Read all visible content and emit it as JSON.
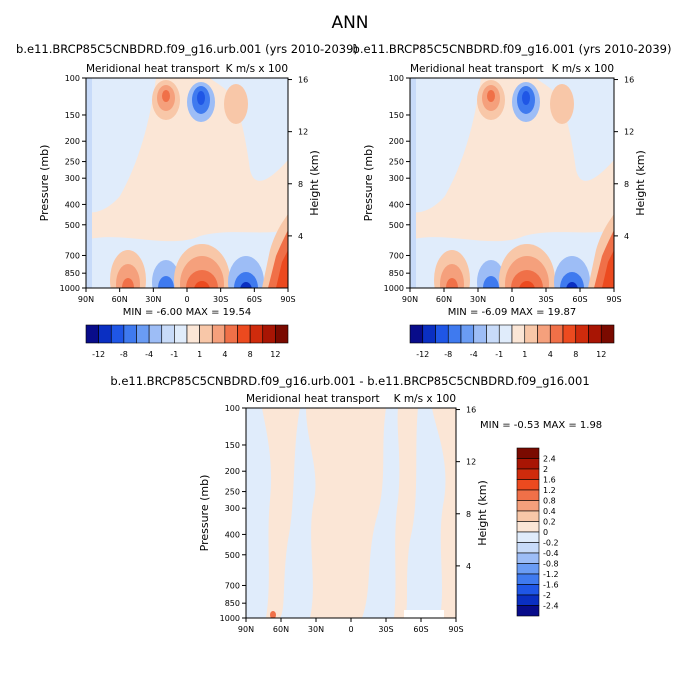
{
  "figure_title": "ANN",
  "chart_data": [
    {
      "type": "heatmap",
      "title": "b.e11.BRCP85C5CNBDRD.f09_g16.urb.001 (yrs 2010-2039)",
      "subtitle_left": "Meridional heat transport",
      "units": "K m/s x 100",
      "ylabel": "Pressure (mb)",
      "ylabel_right": "Height (km)",
      "x_ticks": [
        "90N",
        "60N",
        "30N",
        "0",
        "30S",
        "60S",
        "90S"
      ],
      "y_ticks": [
        "100",
        "150",
        "200",
        "250",
        "300",
        "400",
        "500",
        "700",
        "850",
        "1000"
      ],
      "height_ticks": [
        "16",
        "12",
        "8",
        "4"
      ],
      "stats": "MIN = -6.00  MAX = 19.54",
      "min": -6.0,
      "max": 19.54,
      "contour_levels": [
        -12,
        -10,
        -8,
        -6,
        -4,
        -2,
        -1,
        -0.5,
        0.5,
        1,
        2,
        4,
        6,
        8,
        10,
        12
      ],
      "colorbar_labels": [
        "-12",
        "-8",
        "-4",
        "-1",
        "1",
        "4",
        "8",
        "12"
      ],
      "features": [
        {
          "lat": 22,
          "p": 170,
          "value": 4
        },
        {
          "lat": 4,
          "p": 180,
          "value": -4
        },
        {
          "lat": 20,
          "p": 960,
          "value": 8
        },
        {
          "lat": -20,
          "p": 960,
          "value": 12
        },
        {
          "lat": -5,
          "p": 960,
          "value": -4
        },
        {
          "lat": -50,
          "p": 960,
          "value": -4
        },
        {
          "lat": -85,
          "p": 950,
          "value": 12
        }
      ]
    },
    {
      "type": "heatmap",
      "title": "b.e11.BRCP85C5CNBDRD.f09_g16.001 (yrs 2010-2039)",
      "subtitle_left": "Meridional heat transport",
      "units": "K m/s x 100",
      "ylabel": "Pressure (mb)",
      "ylabel_right": "Height (km)",
      "x_ticks": [
        "90N",
        "60N",
        "30N",
        "0",
        "30S",
        "60S",
        "90S"
      ],
      "y_ticks": [
        "100",
        "150",
        "200",
        "250",
        "300",
        "400",
        "500",
        "700",
        "850",
        "1000"
      ],
      "height_ticks": [
        "16",
        "12",
        "8",
        "4"
      ],
      "stats": "MIN = -6.09  MAX = 19.87",
      "min": -6.09,
      "max": 19.87,
      "contour_levels": [
        -12,
        -10,
        -8,
        -6,
        -4,
        -2,
        -1,
        -0.5,
        0.5,
        1,
        2,
        4,
        6,
        8,
        10,
        12
      ],
      "colorbar_labels": [
        "-12",
        "-8",
        "-4",
        "-1",
        "1",
        "4",
        "8",
        "12"
      ]
    },
    {
      "type": "heatmap",
      "title": "b.e11.BRCP85C5CNBDRD.f09_g16.urb.001 - b.e11.BRCP85C5CNBDRD.f09_g16.001",
      "subtitle_left": "Meridional heat transport",
      "units": "K m/s x 100",
      "ylabel": "Pressure (mb)",
      "ylabel_right": "Height (km)",
      "x_ticks": [
        "90N",
        "60N",
        "30N",
        "0",
        "30S",
        "60S",
        "90S"
      ],
      "y_ticks": [
        "100",
        "150",
        "200",
        "250",
        "300",
        "400",
        "500",
        "700",
        "850",
        "1000"
      ],
      "height_ticks": [
        "16",
        "12",
        "8",
        "4"
      ],
      "stats": "MIN = -0.53  MAX =  1.98",
      "min": -0.53,
      "max": 1.98,
      "contour_levels": [
        -2.4,
        -2,
        -1.6,
        -1.2,
        -0.8,
        -0.4,
        -0.2,
        0,
        0.2,
        0.4,
        0.8,
        1.2,
        1.6,
        2,
        2.4
      ],
      "colorbar_labels": [
        "2.4",
        "2",
        "1.6",
        "1.2",
        "0.8",
        "0.4",
        "0.2",
        "0",
        "-0.2",
        "-0.4",
        "-0.8",
        "-1.2",
        "-1.6",
        "-2",
        "-2.4"
      ]
    }
  ],
  "colors": {
    "blues": [
      "#080c8a",
      "#0a2fc2",
      "#1f56e6",
      "#3f7aef",
      "#6a9cf4",
      "#9dbdf6",
      "#c8dbf9",
      "#e0ecfb"
    ],
    "reds": [
      "#fbe6d6",
      "#f8c7a8",
      "#f5a07c",
      "#f07048",
      "#ec4a1f",
      "#cf2b0c",
      "#a81504",
      "#7a0a00"
    ],
    "diff_colors": [
      "#7a0a00",
      "#a81504",
      "#cf2b0c",
      "#ec4a1f",
      "#f07048",
      "#f5a07c",
      "#f8c7a8",
      "#fbe6d6",
      "#e0ecfb",
      "#c8dbf9",
      "#9dbdf6",
      "#6a9cf4",
      "#3f7aef",
      "#1f56e6",
      "#0a2fc2",
      "#080c8a"
    ]
  }
}
